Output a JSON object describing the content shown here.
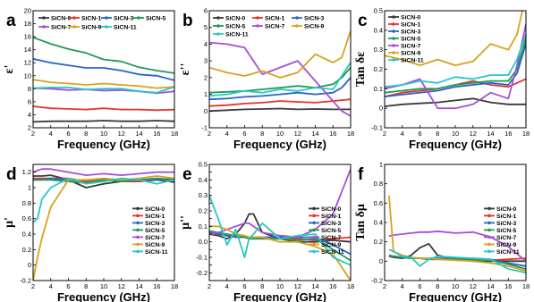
{
  "figure": {
    "background": "#ffffff"
  },
  "series_meta": [
    {
      "name": "SiCN-0",
      "color": "#3a3a3a"
    },
    {
      "name": "SiCN-1",
      "color": "#e8322e"
    },
    {
      "name": "SiCN-3",
      "color": "#2a64c9"
    },
    {
      "name": "SiCN-5",
      "color": "#1f9a58"
    },
    {
      "name": "SiCN-7",
      "color": "#a64fd8"
    },
    {
      "name": "SiCN-9",
      "color": "#d8a21c"
    },
    {
      "name": "SiCN-11",
      "color": "#29c6c6"
    }
  ],
  "chart_data": [
    {
      "panel": "a",
      "type": "line",
      "ylabel": "ε'",
      "xlabel": "Frequency (GHz)",
      "xlim": [
        2,
        18
      ],
      "ylim": [
        2,
        20
      ],
      "xticks": [
        2,
        4,
        6,
        8,
        10,
        12,
        14,
        16,
        18
      ],
      "yticks": [
        2,
        4,
        6,
        8,
        10,
        12,
        14,
        16,
        18,
        20
      ],
      "legend": {
        "layout": "grid-4col",
        "position": "top"
      },
      "x": [
        2,
        4,
        6,
        8,
        10,
        12,
        14,
        16,
        18
      ],
      "series": [
        {
          "name": "SiCN-0",
          "values": [
            2.9,
            3.0,
            3.0,
            3.0,
            3.1,
            3.0,
            3.0,
            3.1,
            3.0
          ]
        },
        {
          "name": "SiCN-1",
          "values": [
            5.3,
            5.0,
            4.9,
            4.8,
            5.0,
            4.8,
            4.8,
            4.7,
            4.8
          ]
        },
        {
          "name": "SiCN-3",
          "values": [
            12.6,
            12.0,
            11.6,
            11.2,
            11.2,
            10.8,
            10.2,
            10.0,
            9.3
          ]
        },
        {
          "name": "SiCN-5",
          "values": [
            15.9,
            14.9,
            14.1,
            13.5,
            12.5,
            12.2,
            11.3,
            10.8,
            10.4
          ]
        },
        {
          "name": "SiCN-7",
          "values": [
            8.1,
            8.0,
            7.8,
            7.9,
            7.7,
            7.8,
            7.6,
            7.3,
            7.6
          ]
        },
        {
          "name": "SiCN-9",
          "values": [
            9.4,
            9.0,
            8.8,
            8.6,
            8.8,
            8.6,
            8.4,
            8.1,
            8.3
          ]
        },
        {
          "name": "SiCN-11",
          "values": [
            8.1,
            8.2,
            8.2,
            7.9,
            8.0,
            8.0,
            7.6,
            7.4,
            8.3
          ]
        }
      ]
    },
    {
      "panel": "b",
      "type": "line",
      "ylabel": "ε''",
      "xlabel": "Frequency (GHz)",
      "xlim": [
        2,
        18
      ],
      "ylim": [
        -1,
        6
      ],
      "xticks": [
        2,
        4,
        6,
        8,
        10,
        12,
        14,
        16,
        18
      ],
      "yticks": [
        -1,
        0,
        1,
        2,
        3,
        4,
        5,
        6
      ],
      "legend": {
        "layout": "grid-3col",
        "position": "top"
      },
      "x": [
        2,
        4,
        6,
        8,
        10,
        12,
        14,
        16,
        17,
        18
      ],
      "series": [
        {
          "name": "SiCN-0",
          "values": [
            0.0,
            0.05,
            0.1,
            0.12,
            0.15,
            0.1,
            0.12,
            0.1,
            0.1,
            0.1
          ]
        },
        {
          "name": "SiCN-1",
          "values": [
            0.3,
            0.35,
            0.45,
            0.5,
            0.6,
            0.55,
            0.5,
            0.6,
            0.65,
            0.7
          ]
        },
        {
          "name": "SiCN-3",
          "values": [
            0.7,
            0.75,
            0.85,
            0.9,
            1.0,
            1.1,
            1.0,
            1.1,
            1.4,
            2.0
          ]
        },
        {
          "name": "SiCN-5",
          "values": [
            1.1,
            1.15,
            1.2,
            1.3,
            1.4,
            1.5,
            1.4,
            1.6,
            2.0,
            2.6
          ]
        },
        {
          "name": "SiCN-7",
          "values": [
            4.1,
            4.0,
            3.8,
            2.2,
            2.6,
            3.0,
            1.8,
            0.6,
            0.0,
            -0.3
          ]
        },
        {
          "name": "SiCN-9",
          "values": [
            2.6,
            2.3,
            2.1,
            2.4,
            2.0,
            2.3,
            3.4,
            2.9,
            3.2,
            4.8
          ]
        },
        {
          "name": "SiCN-11",
          "values": [
            0.9,
            1.0,
            1.2,
            1.1,
            1.3,
            1.2,
            1.4,
            1.3,
            2.1,
            2.9
          ]
        }
      ]
    },
    {
      "panel": "c",
      "type": "line",
      "ylabel": "Tan δε",
      "xlabel": "Frequency (GHz)",
      "xlim": [
        2,
        18
      ],
      "ylim": [
        -0.1,
        0.5
      ],
      "xticks": [
        2,
        4,
        6,
        8,
        10,
        12,
        14,
        16,
        18
      ],
      "yticks": [
        -0.1,
        0.0,
        0.1,
        0.2,
        0.3,
        0.4,
        0.5
      ],
      "legend": {
        "layout": "column",
        "position": "top-left"
      },
      "x": [
        2,
        4,
        6,
        8,
        10,
        12,
        14,
        16,
        17,
        18
      ],
      "series": [
        {
          "name": "SiCN-0",
          "values": [
            0.01,
            0.02,
            0.025,
            0.03,
            0.04,
            0.05,
            0.03,
            0.02,
            0.02,
            0.02
          ]
        },
        {
          "name": "SiCN-1",
          "values": [
            0.06,
            0.08,
            0.09,
            0.1,
            0.12,
            0.14,
            0.12,
            0.11,
            0.13,
            0.15
          ]
        },
        {
          "name": "SiCN-3",
          "values": [
            0.06,
            0.07,
            0.08,
            0.09,
            0.11,
            0.12,
            0.13,
            0.12,
            0.18,
            0.33
          ]
        },
        {
          "name": "SiCN-5",
          "values": [
            0.08,
            0.09,
            0.1,
            0.1,
            0.12,
            0.13,
            0.14,
            0.14,
            0.2,
            0.36
          ]
        },
        {
          "name": "SiCN-7",
          "values": [
            0.1,
            0.12,
            0.15,
            0.0,
            0.0,
            0.02,
            0.08,
            0.05,
            0.22,
            0.43
          ]
        },
        {
          "name": "SiCN-9",
          "values": [
            0.27,
            0.25,
            0.22,
            0.25,
            0.22,
            0.24,
            0.33,
            0.3,
            0.38,
            0.58
          ]
        },
        {
          "name": "SiCN-11",
          "values": [
            0.11,
            0.12,
            0.14,
            0.13,
            0.16,
            0.15,
            0.17,
            0.17,
            0.25,
            0.38
          ]
        }
      ]
    },
    {
      "panel": "d",
      "type": "line",
      "ylabel": "μ'",
      "xlabel": "Frequency (GHz)",
      "xlim": [
        2,
        18
      ],
      "ylim": [
        -0.2,
        1.3
      ],
      "xticks": [
        2,
        4,
        6,
        8,
        10,
        12,
        14,
        16,
        18
      ],
      "yticks": [
        -0.2,
        0.0,
        0.2,
        0.4,
        0.6,
        0.8,
        1.0,
        1.2
      ],
      "legend": {
        "layout": "column",
        "position": "right"
      },
      "x": [
        2,
        2.5,
        3,
        4,
        6,
        8,
        10,
        12,
        14,
        16,
        18
      ],
      "series": [
        {
          "name": "SiCN-0",
          "values": [
            1.15,
            1.15,
            1.15,
            1.16,
            1.1,
            1.0,
            1.05,
            1.08,
            1.08,
            1.1,
            1.07
          ]
        },
        {
          "name": "SiCN-1",
          "values": [
            1.12,
            1.12,
            1.12,
            1.12,
            1.12,
            1.08,
            1.1,
            1.08,
            1.08,
            1.1,
            1.1
          ]
        },
        {
          "name": "SiCN-3",
          "values": [
            1.1,
            1.1,
            1.1,
            1.12,
            1.1,
            1.06,
            1.1,
            1.08,
            1.1,
            1.1,
            1.12
          ]
        },
        {
          "name": "SiCN-5",
          "values": [
            1.1,
            1.1,
            1.1,
            1.1,
            1.08,
            1.06,
            1.1,
            1.08,
            1.1,
            1.12,
            1.1
          ]
        },
        {
          "name": "SiCN-7",
          "values": [
            1.2,
            1.22,
            1.24,
            1.24,
            1.2,
            1.16,
            1.18,
            1.16,
            1.18,
            1.2,
            1.2
          ]
        },
        {
          "name": "SiCN-9",
          "values": [
            -0.2,
            0.1,
            0.35,
            0.75,
            1.1,
            1.1,
            1.12,
            1.1,
            1.12,
            1.15,
            1.12
          ]
        },
        {
          "name": "SiCN-11",
          "values": [
            0.55,
            0.6,
            0.85,
            1.0,
            1.12,
            1.05,
            1.08,
            1.12,
            1.1,
            1.05,
            1.1
          ]
        }
      ]
    },
    {
      "panel": "e",
      "type": "line",
      "ylabel": "μ''",
      "xlabel": "Frequency (GHz)",
      "xlim": [
        2,
        18
      ],
      "ylim": [
        -0.25,
        0.5
      ],
      "xticks": [
        2,
        4,
        6,
        8,
        10,
        12,
        14,
        16,
        18
      ],
      "yticks": [
        -0.25,
        -0.2,
        -0.15,
        -0.1,
        -0.05,
        0.0,
        0.05,
        0.1,
        0.15,
        0.2,
        0.25,
        0.3,
        0.35,
        0.4,
        0.45,
        0.5
      ],
      "ytick_labels": [
        "",
        "-0.2",
        "",
        "-0.1",
        "",
        "0.0",
        "",
        "0.1",
        "",
        "0.2",
        "",
        "0.3",
        "",
        "0.4",
        "",
        "0.5"
      ],
      "legend": {
        "layout": "column",
        "position": "right"
      },
      "x": [
        2,
        3,
        4,
        5,
        6,
        6.5,
        7,
        8,
        10,
        12,
        14,
        16,
        18
      ],
      "series": [
        {
          "name": "SiCN-0",
          "values": [
            0.05,
            0.04,
            0.02,
            0.05,
            0.12,
            0.18,
            0.18,
            0.06,
            0.02,
            0.0,
            0.0,
            0.01,
            0.0
          ]
        },
        {
          "name": "SiCN-1",
          "values": [
            0.05,
            0.05,
            0.04,
            0.03,
            0.03,
            0.02,
            0.02,
            0.02,
            0.02,
            0.02,
            0.01,
            0.02,
            0.03
          ]
        },
        {
          "name": "SiCN-3",
          "values": [
            0.06,
            0.05,
            0.04,
            0.03,
            0.03,
            0.03,
            0.03,
            0.03,
            0.03,
            0.03,
            0.03,
            -0.02,
            -0.08
          ]
        },
        {
          "name": "SiCN-5",
          "values": [
            0.07,
            0.06,
            0.05,
            0.04,
            0.03,
            0.02,
            0.02,
            0.02,
            0.02,
            0.01,
            0.02,
            -0.05,
            -0.12
          ]
        },
        {
          "name": "SiCN-7",
          "values": [
            0.05,
            0.06,
            0.08,
            0.1,
            0.12,
            0.12,
            0.1,
            0.06,
            0.04,
            0.03,
            0.08,
            0.18,
            0.47
          ]
        },
        {
          "name": "SiCN-9",
          "values": [
            0.1,
            0.1,
            0.08,
            0.05,
            0.04,
            0.03,
            0.03,
            0.03,
            0.0,
            0.0,
            -0.03,
            -0.08,
            -0.25
          ]
        },
        {
          "name": "SiCN-11",
          "values": [
            0.3,
            0.15,
            -0.02,
            0.08,
            -0.1,
            0.02,
            0.05,
            0.12,
            0.02,
            0.04,
            0.05,
            -0.1,
            -0.15
          ]
        }
      ]
    },
    {
      "panel": "f",
      "type": "line",
      "ylabel": "Tan δμ",
      "xlabel": "Frequency (GHz)",
      "xlim": [
        2,
        18
      ],
      "ylim": [
        -0.2,
        1.0
      ],
      "xticks": [
        2,
        4,
        6,
        8,
        10,
        12,
        14,
        16,
        18
      ],
      "yticks": [
        -0.2,
        0.0,
        0.2,
        0.4,
        0.6,
        0.8,
        1.0
      ],
      "legend": {
        "layout": "column",
        "position": "right"
      },
      "x": [
        2.5,
        3,
        4,
        5,
        6,
        7,
        8,
        10,
        12,
        14,
        16,
        18
      ],
      "series": [
        {
          "name": "SiCN-0",
          "values": [
            0.05,
            0.04,
            0.03,
            0.06,
            0.14,
            0.18,
            0.06,
            0.02,
            0.0,
            0.0,
            0.0,
            0.0
          ]
        },
        {
          "name": "SiCN-1",
          "values": [
            0.05,
            0.05,
            0.04,
            0.03,
            0.03,
            0.02,
            0.02,
            0.02,
            0.02,
            0.01,
            0.02,
            0.03
          ]
        },
        {
          "name": "SiCN-3",
          "values": [
            0.06,
            0.05,
            0.04,
            0.03,
            0.03,
            0.03,
            0.03,
            0.03,
            0.03,
            0.02,
            -0.02,
            -0.05
          ]
        },
        {
          "name": "SiCN-5",
          "values": [
            0.06,
            0.05,
            0.04,
            0.03,
            0.03,
            0.02,
            0.02,
            0.02,
            0.01,
            0.01,
            -0.03,
            -0.08
          ]
        },
        {
          "name": "SiCN-7",
          "values": [
            0.26,
            0.27,
            0.28,
            0.29,
            0.3,
            0.3,
            0.31,
            0.29,
            0.3,
            0.25,
            0.15,
            0.0
          ]
        },
        {
          "name": "SiCN-9",
          "values": [
            0.68,
            0.1,
            0.06,
            0.04,
            0.03,
            0.03,
            0.02,
            0.01,
            0.0,
            -0.02,
            -0.05,
            -0.1
          ]
        },
        {
          "name": "SiCN-11",
          "values": [
            0.12,
            0.1,
            0.05,
            0.04,
            -0.05,
            0.02,
            0.05,
            0.04,
            0.03,
            0.02,
            -0.08,
            -0.12
          ]
        }
      ]
    }
  ]
}
